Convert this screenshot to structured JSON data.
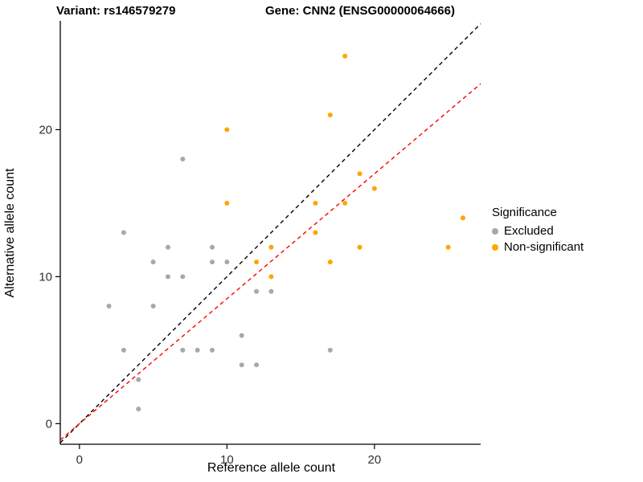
{
  "header": {
    "variant_title": "Variant: rs146579279",
    "gene_title": "Gene: CNN2 (ENSG00000064666)"
  },
  "chart_data": {
    "type": "scatter",
    "title": "Variant: rs146579279 / Gene: CNN2 (ENSG00000064666)",
    "xlabel": "Reference allele count",
    "ylabel": "Alternative allele count",
    "xlim": [
      -1.3,
      27.2
    ],
    "ylim": [
      -1.4,
      27.4
    ],
    "xticks": [
      0,
      10,
      20
    ],
    "yticks": [
      0,
      10,
      20
    ],
    "grid": false,
    "legend": {
      "title": "Significance",
      "position": "right",
      "items": [
        {
          "label": "Excluded",
          "color": "#A8A8A8"
        },
        {
          "label": "Non-significant",
          "color": "#FFA500"
        }
      ]
    },
    "series": [
      {
        "name": "Excluded",
        "color": "#A8A8A8",
        "points": [
          [
            2,
            8
          ],
          [
            3,
            13
          ],
          [
            3,
            5
          ],
          [
            4,
            3
          ],
          [
            4,
            1
          ],
          [
            5,
            8
          ],
          [
            5,
            11
          ],
          [
            6,
            12
          ],
          [
            6,
            10
          ],
          [
            7,
            10
          ],
          [
            7,
            18
          ],
          [
            7,
            5
          ],
          [
            8,
            5
          ],
          [
            9,
            5
          ],
          [
            9,
            11
          ],
          [
            9,
            12
          ],
          [
            10,
            11
          ],
          [
            11,
            6
          ],
          [
            11,
            4
          ],
          [
            12,
            9
          ],
          [
            12,
            4
          ],
          [
            13,
            9
          ],
          [
            17,
            5
          ]
        ]
      },
      {
        "name": "Non-significant",
        "color": "#FFA500",
        "points": [
          [
            10,
            20
          ],
          [
            10,
            15
          ],
          [
            12,
            11
          ],
          [
            13,
            12
          ],
          [
            13,
            10
          ],
          [
            16,
            15
          ],
          [
            16,
            13
          ],
          [
            17,
            21
          ],
          [
            17,
            11
          ],
          [
            18,
            25
          ],
          [
            18,
            15
          ],
          [
            19,
            17
          ],
          [
            19,
            12
          ],
          [
            20,
            16
          ],
          [
            25,
            12
          ],
          [
            26,
            14
          ]
        ]
      }
    ],
    "lines": [
      {
        "name": "identity",
        "slope": 1.0,
        "intercept": 0,
        "color": "#000000",
        "style": "dashed"
      },
      {
        "name": "fit",
        "slope": 0.85,
        "intercept": 0,
        "color": "#FF0000",
        "style": "dashed"
      }
    ]
  }
}
